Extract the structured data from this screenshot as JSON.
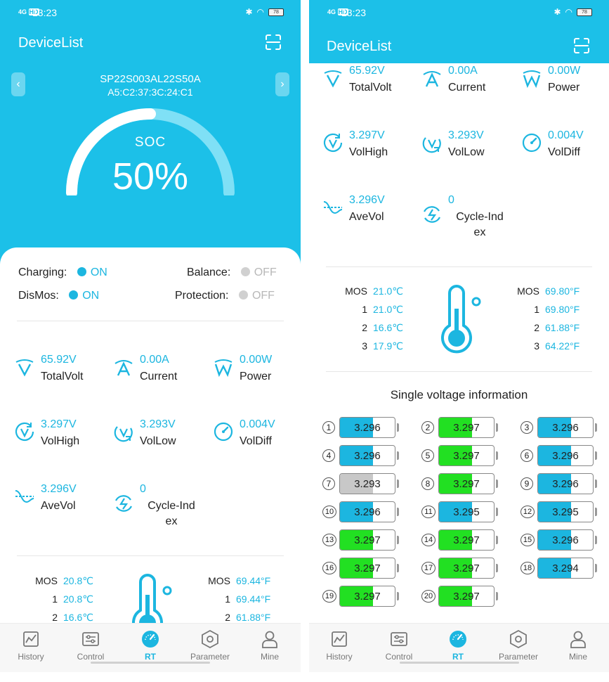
{
  "status": {
    "time": "13:23",
    "signal": "4G",
    "hd": "HD",
    "battery": "78"
  },
  "app": {
    "title": "DeviceList"
  },
  "device": {
    "name": "SP22S003AL22S50A",
    "mac": "A5:C2:37:3C:24:C1"
  },
  "soc": {
    "label": "SOC",
    "value": "50%",
    "percent": 50
  },
  "states": {
    "charging": {
      "label": "Charging:",
      "value": "ON"
    },
    "balance": {
      "label": "Balance:",
      "value": "OFF"
    },
    "dismos": {
      "label": "DisMos:",
      "value": "ON"
    },
    "protection": {
      "label": "Protection:",
      "value": "OFF"
    }
  },
  "metrics": {
    "total_volt": {
      "value": "65.92V",
      "label": "TotalVolt",
      "icon": "v-icon"
    },
    "current": {
      "value": "0.00A",
      "label": "Current",
      "icon": "a-icon"
    },
    "power": {
      "value": "0.00W",
      "label": "Power",
      "icon": "w-icon"
    },
    "vol_high": {
      "value": "3.297V",
      "label": "VolHigh",
      "icon": "volt-up-icon"
    },
    "vol_low": {
      "value": "3.293V",
      "label": "VolLow",
      "icon": "volt-down-icon"
    },
    "vol_diff": {
      "value": "0.004V",
      "label": "VolDiff",
      "icon": "gauge-icon"
    },
    "ave_vol": {
      "value": "3.296V",
      "label": "AveVol",
      "icon": "wave-icon"
    },
    "cycle_index": {
      "value": "0",
      "label": "Cycle-Ind ex",
      "label_l1": "Cycle-Ind",
      "label_l2": "ex",
      "icon": "cycle-icon"
    }
  },
  "temps_left": {
    "celsius": [
      {
        "k": "MOS",
        "v": "20.8℃"
      },
      {
        "k": "1",
        "v": "20.8℃"
      },
      {
        "k": "2",
        "v": "16.6℃"
      }
    ],
    "fahrenheit": [
      {
        "k": "MOS",
        "v": "69.44°F"
      },
      {
        "k": "1",
        "v": "69.44°F"
      },
      {
        "k": "2",
        "v": "61.88°F"
      }
    ]
  },
  "temps_right": {
    "celsius": [
      {
        "k": "MOS",
        "v": "21.0℃"
      },
      {
        "k": "1",
        "v": "21.0℃"
      },
      {
        "k": "2",
        "v": "16.6℃"
      },
      {
        "k": "3",
        "v": "17.9℃"
      }
    ],
    "fahrenheit": [
      {
        "k": "MOS",
        "v": "69.80°F"
      },
      {
        "k": "1",
        "v": "69.80°F"
      },
      {
        "k": "2",
        "v": "61.88°F"
      },
      {
        "k": "3",
        "v": "64.22°F"
      }
    ]
  },
  "single_voltage": {
    "title": "Single voltage information",
    "colors": {
      "blue": "#1cb6e0",
      "green": "#22e022",
      "gray": "#c8c8c8"
    },
    "cells": [
      {
        "n": "1",
        "v": "3.296",
        "c": "blue"
      },
      {
        "n": "2",
        "v": "3.297",
        "c": "green"
      },
      {
        "n": "3",
        "v": "3.296",
        "c": "blue"
      },
      {
        "n": "4",
        "v": "3.296",
        "c": "blue"
      },
      {
        "n": "5",
        "v": "3.297",
        "c": "green"
      },
      {
        "n": "6",
        "v": "3.296",
        "c": "blue"
      },
      {
        "n": "7",
        "v": "3.293",
        "c": "gray"
      },
      {
        "n": "8",
        "v": "3.297",
        "c": "green"
      },
      {
        "n": "9",
        "v": "3.296",
        "c": "blue"
      },
      {
        "n": "10",
        "v": "3.296",
        "c": "blue"
      },
      {
        "n": "11",
        "v": "3.295",
        "c": "blue"
      },
      {
        "n": "12",
        "v": "3.295",
        "c": "blue"
      },
      {
        "n": "13",
        "v": "3.297",
        "c": "green"
      },
      {
        "n": "14",
        "v": "3.297",
        "c": "green"
      },
      {
        "n": "15",
        "v": "3.296",
        "c": "blue"
      },
      {
        "n": "16",
        "v": "3.297",
        "c": "green"
      },
      {
        "n": "17",
        "v": "3.297",
        "c": "green"
      },
      {
        "n": "18",
        "v": "3.294",
        "c": "blue"
      },
      {
        "n": "19",
        "v": "3.297",
        "c": "green"
      },
      {
        "n": "20",
        "v": "3.297",
        "c": "green"
      }
    ],
    "fill_fraction": 0.6
  },
  "tabs": [
    {
      "label": "History",
      "icon": "chart-icon"
    },
    {
      "label": "Control",
      "icon": "sliders-icon"
    },
    {
      "label": "RT",
      "icon": "dashboard-icon",
      "active": true
    },
    {
      "label": "Parameter",
      "icon": "hexagon-icon"
    },
    {
      "label": "Mine",
      "icon": "person-icon"
    }
  ],
  "theme": {
    "accent": "#1cc0e8",
    "value_color": "#1cb6e0"
  }
}
